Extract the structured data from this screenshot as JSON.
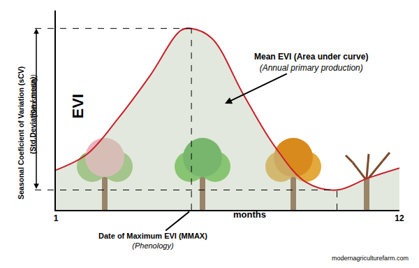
{
  "chart_data": {
    "type": "area",
    "x_label": "months",
    "y_label": "EVI",
    "x": [
      1,
      2,
      3,
      4,
      5,
      5.34,
      6,
      7,
      8,
      9,
      10,
      11,
      12
    ],
    "values": [
      20,
      28,
      46,
      67,
      90,
      91,
      86,
      58,
      32,
      14,
      10,
      16,
      21
    ],
    "color": "#c8202a",
    "xlim": [
      1,
      12
    ],
    "xticks": [
      1,
      12
    ],
    "ylim": [
      0,
      100
    ],
    "tick_labels": "x",
    "grid": false,
    "annotations": {
      "mean_evi": {
        "title": "Mean EVI (Area under curve)",
        "subtitle": "(Annual primary production)"
      },
      "mmax": {
        "title": "Date of Maximum EVI (MMAX)",
        "subtitle": "(Phenology)"
      },
      "scv": {
        "title": "Seasonal Coeficient of Variation (sCV)",
        "formula": "(Std.Deviation / mean)",
        "subtitle": "(Seasonality)"
      }
    },
    "watermark": "modernagriculturefarm.com"
  }
}
